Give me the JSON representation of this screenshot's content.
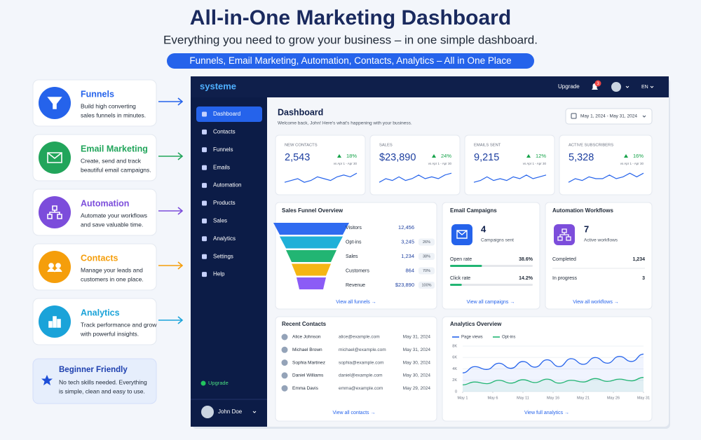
{
  "header": {
    "title": "All-in-One Marketing Dashboard",
    "subtitle": "Everything you need to grow your business – in one simple dashboard.",
    "tagline": "Funnels, Email Marketing, Automation, Contacts, Analytics – All in One Place"
  },
  "features": [
    {
      "title": "Funnels",
      "description": [
        "Build high converting",
        "sales funnels in minutes."
      ],
      "color": "#2563eb"
    },
    {
      "title": "Email Marketing",
      "description": [
        "Create, send and track",
        "beautiful email campaigns."
      ],
      "color": "#22a55b"
    },
    {
      "title": "Automation",
      "description": [
        "Automate your workflows",
        "and save valuable time."
      ],
      "color": "#7c4ddb"
    },
    {
      "title": "Contacts",
      "description": [
        "Manage your leads and",
        "customers in one place."
      ],
      "color": "#f59e0b"
    },
    {
      "title": "Analytics",
      "description": [
        "Track performance and grow",
        "with powerful insights."
      ],
      "color": "#1aa3d9"
    }
  ],
  "beginner": {
    "title": "Beginner Friendly",
    "description": [
      "No tech skills needed. Everything",
      "is simple, clean and easy to use."
    ]
  },
  "app": {
    "logo": "systeme",
    "topbar": {
      "upgrade": "Upgrade",
      "notifications": "3",
      "language": "EN"
    },
    "sidebar": {
      "items": [
        "Dashboard",
        "Contacts",
        "Funnels",
        "Emails",
        "Automation",
        "Products",
        "Sales",
        "Analytics",
        "Settings",
        "Help"
      ],
      "upgrade": "Upgrade",
      "user": "John Doe"
    },
    "dashboard": {
      "title": "Dashboard",
      "welcome": "Welcome back, John! Here's what's happening with your business.",
      "date_range": "May 1, 2024 - May 31, 2024"
    },
    "stats": [
      {
        "label": "NEW CONTACTS",
        "value": "2,543",
        "change": "18%",
        "compare": "vs Apr 1 - Apr 30",
        "trend": [
          3,
          4,
          5,
          3,
          4,
          6,
          5,
          4,
          6,
          7,
          6,
          8
        ]
      },
      {
        "label": "SALES",
        "value": "$23,890",
        "change": "24%",
        "compare": "vs Apr 1 - Apr 30",
        "trend": [
          3,
          5,
          4,
          6,
          4,
          5,
          7,
          5,
          6,
          5,
          7,
          8
        ]
      },
      {
        "label": "EMAILS SENT",
        "value": "9,215",
        "change": "12%",
        "compare": "vs Apr 1 - Apr 30",
        "trend": [
          3,
          4,
          6,
          4,
          5,
          4,
          6,
          5,
          7,
          5,
          6,
          7
        ]
      },
      {
        "label": "ACTIVE SUBSCRIBERS",
        "value": "5,328",
        "change": "16%",
        "compare": "vs Apr 1 - Apr 30",
        "trend": [
          3,
          5,
          4,
          6,
          5,
          5,
          7,
          5,
          6,
          8,
          6,
          8
        ]
      }
    ],
    "funnel": {
      "title": "Sales Funnel Overview",
      "stages": [
        {
          "label": "Visitors",
          "value": "12,456",
          "color": "#2f6bf0"
        },
        {
          "label": "Opt-ins",
          "value": "3,245",
          "rate": "26%",
          "color": "#1fb0d8"
        },
        {
          "label": "Sales",
          "value": "1,234",
          "rate": "38%",
          "color": "#22b573"
        },
        {
          "label": "Customers",
          "value": "864",
          "rate": "70%",
          "color": "#f5b614"
        },
        {
          "label": "Revenue",
          "value": "$23,890",
          "rate": "100%",
          "color": "#8b5cf6"
        }
      ],
      "link": "View all funnels →"
    },
    "email": {
      "title": "Email Campaigns",
      "count": "4",
      "count_label": "Campaigns sent",
      "metrics": [
        {
          "label": "Open rate",
          "value": 38.6,
          "value_label": "38.6%"
        },
        {
          "label": "Click rate",
          "value": 14.2,
          "value_label": "14.2%"
        }
      ],
      "link": "View all campaigns →"
    },
    "automation": {
      "title": "Automation Workflows",
      "count": "7",
      "count_label": "Active workflows",
      "metrics": [
        {
          "label": "Completed",
          "value": "1,234"
        },
        {
          "label": "In progress",
          "value": "3"
        }
      ],
      "link": "View all workflows →"
    },
    "contacts": {
      "title": "Recent Contacts",
      "rows": [
        {
          "name": "Alice Johnson",
          "email": "alice@example.com",
          "date": "May 31, 2024"
        },
        {
          "name": "Michael Brown",
          "email": "michael@example.com",
          "date": "May 31, 2024"
        },
        {
          "name": "Sophia Martinez",
          "email": "sophia@example.com",
          "date": "May 30, 2024"
        },
        {
          "name": "Daniel Williams",
          "email": "daniel@example.com",
          "date": "May 30, 2024"
        },
        {
          "name": "Emma Davis",
          "email": "emma@example.com",
          "date": "May 29, 2024"
        }
      ],
      "link": "View all contacts →"
    },
    "analytics": {
      "title": "Analytics Overview",
      "type": "line",
      "x": [
        1,
        3,
        5,
        7,
        9,
        11,
        13,
        15,
        17,
        19,
        21,
        23,
        25,
        27,
        29,
        31
      ],
      "xlim": [
        1,
        31
      ],
      "xticks": [
        {
          "value": 1,
          "label": "May 1"
        },
        {
          "value": 6,
          "label": "May 6"
        },
        {
          "value": 11,
          "label": "May 11"
        },
        {
          "value": 16,
          "label": "May 16"
        },
        {
          "value": 21,
          "label": "May 21"
        },
        {
          "value": 26,
          "label": "May 26"
        },
        {
          "value": 31,
          "label": "May 31"
        }
      ],
      "ylim": [
        0,
        8000
      ],
      "yticks": [
        0,
        {
          "value": 2000,
          "label": "2K"
        },
        {
          "value": 4000,
          "label": "4K"
        },
        {
          "value": 6000,
          "label": "6K"
        },
        {
          "value": 8000,
          "label": "8K"
        }
      ],
      "grid": true,
      "series": [
        {
          "name": "Page views",
          "color": "#2563eb",
          "values": [
            3300,
            4400,
            3900,
            5000,
            4100,
            5300,
            4300,
            5600,
            4400,
            5800,
            4800,
            6000,
            5000,
            6200,
            5300,
            6600
          ]
        },
        {
          "name": "Opt-ins",
          "color": "#22b573",
          "values": [
            1200,
            1700,
            1400,
            2000,
            1500,
            2100,
            1600,
            2200,
            1500,
            2000,
            1700,
            2300,
            1800,
            2200,
            1900,
            2500
          ]
        }
      ],
      "link": "View full analytics →"
    }
  }
}
